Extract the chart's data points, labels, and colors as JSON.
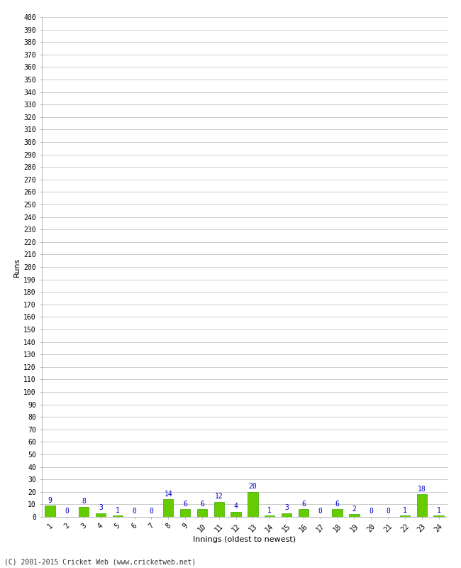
{
  "innings": [
    1,
    2,
    3,
    4,
    5,
    6,
    7,
    8,
    9,
    10,
    11,
    12,
    13,
    14,
    15,
    16,
    17,
    18,
    19,
    20,
    21,
    22,
    23,
    24
  ],
  "runs": [
    9,
    0,
    8,
    3,
    1,
    0,
    0,
    14,
    6,
    6,
    12,
    4,
    20,
    1,
    3,
    6,
    0,
    6,
    2,
    0,
    0,
    1,
    18,
    1
  ],
  "bar_color": "#66cc00",
  "bar_edge_color": "#33aa00",
  "label_color": "#0000cc",
  "ylabel": "Runs",
  "xlabel": "Innings (oldest to newest)",
  "ylim": [
    0,
    400
  ],
  "background_color": "#ffffff",
  "grid_color": "#cccccc",
  "footer": "(C) 2001-2015 Cricket Web (www.cricketweb.net)"
}
